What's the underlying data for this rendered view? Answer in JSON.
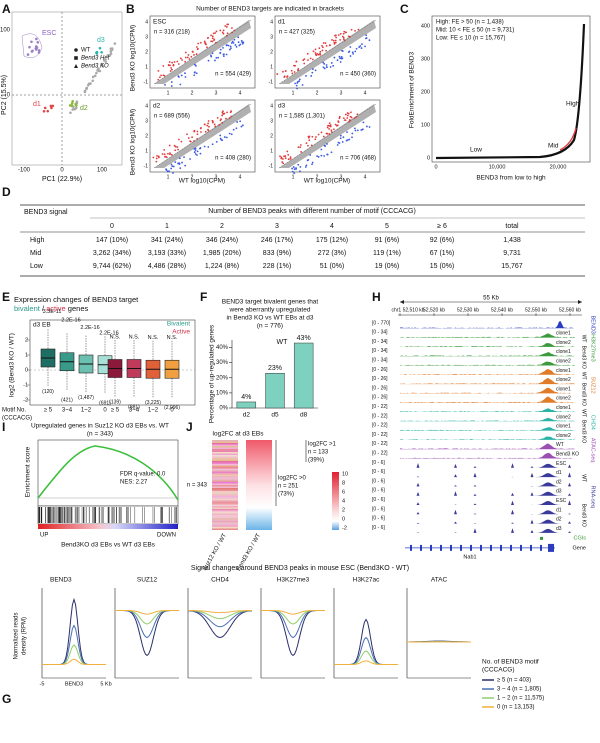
{
  "A": {
    "label": "A",
    "groups": [
      "ESC",
      "d1",
      "d2",
      "d3"
    ],
    "legend": [
      "WT",
      "Bend3 Het",
      "Bend3 KO"
    ],
    "x_label": "PC1 (22.9%)",
    "y_label": "PC2 (15.5%)",
    "x_ticks": [
      "-100",
      "0",
      "100"
    ],
    "y_ticks": [
      "100",
      "0"
    ]
  },
  "B": {
    "label": "B",
    "title": "Number of BEND3 targets are indicated in brackets",
    "plots": [
      {
        "name": "ESC",
        "up": "n = 316 (218)",
        "down": "n = 554 (429)"
      },
      {
        "name": "d1",
        "up": "n = 427 (325)",
        "down": "n = 450 (360)"
      },
      {
        "name": "d2",
        "up": "n = 689 (556)",
        "down": "n = 408 (280)"
      },
      {
        "name": "d3",
        "up": "n = 1,585 (1,301)",
        "down": "n = 706 (468)"
      }
    ],
    "y_label": "Bend3 KO log10(CPM)",
    "x_label": "WT log10(CPM)",
    "ticks": [
      "-1",
      "1",
      "2",
      "3",
      "4"
    ]
  },
  "C": {
    "label": "C",
    "legend": [
      "High: FE > 50 (n = 1,438)",
      "Mid: 10 < FE ≤ 50 (n = 9,731)",
      "Low: FE ≤ 10 (n = 15,767)"
    ],
    "y_label": "FoldEnrichment of BEND3",
    "x_label": "BEND3 from low to high",
    "x_ticks": [
      "0",
      "10,000",
      "20,000"
    ],
    "y_ticks": [
      "0",
      "100",
      "200",
      "300",
      "400"
    ],
    "classes": [
      "Low",
      "Mid",
      "High"
    ]
  },
  "D": {
    "label": "D",
    "row_header": "BEND3 signal",
    "col_title": "Number of BEND3 peaks with different number of motif (CCCACG)",
    "columns": [
      "0",
      "1",
      "2",
      "3",
      "4",
      "5",
      "≥ 6",
      "total"
    ],
    "rows": [
      {
        "name": "High",
        "cells": [
          "147 (10%)",
          "341 (24%)",
          "346 (24%)",
          "246 (17%)",
          "175 (12%)",
          "91 (6%)",
          "92 (6%)",
          "1,438"
        ]
      },
      {
        "name": "Mid",
        "cells": [
          "3,262 (34%)",
          "3,193 (33%)",
          "1,985 (20%)",
          "833 (9%)",
          "272 (3%)",
          "119 (1%)",
          "67 (1%)",
          "9,731"
        ]
      },
      {
        "name": "Low",
        "cells": [
          "9,744 (62%)",
          "4,486 (28%)",
          "1,224 (8%)",
          "228 (1%)",
          "51 (0%)",
          "19 (0%)",
          "15 (0%)",
          "15,767"
        ]
      }
    ]
  },
  "E": {
    "label": "E",
    "title": "Expression changes of BEND3 target",
    "bivalent": "bivalent",
    "slash": " / ",
    "active": "active",
    "genes": " genes",
    "stage": "d3 EB",
    "legend": [
      "Bivalent",
      "Active"
    ],
    "y_label": "log2 (Bend3 KO / WT)",
    "y_ticks": [
      "2",
      "1",
      "0",
      "-1",
      "-2"
    ],
    "pvalues": [
      "3.3E-11",
      "2.2E-16",
      "2.2E-16",
      "2.2E-16",
      "N.S.",
      "N.S.",
      "N.S.",
      "N.S."
    ],
    "counts": [
      "(120)",
      "(421)",
      "(1,487)",
      "(691)",
      "(139)",
      "(881)",
      "(3,225)",
      "(2,096)"
    ],
    "motif_label": [
      "Motif No.",
      "(CCCACG)"
    ],
    "categories": [
      "≥ 5",
      "3~4",
      "1~2",
      "0"
    ]
  },
  "chart_data": {
    "type": "bar",
    "label": "F",
    "title": [
      "BEND3 target bivalent genes that",
      "were aberrantly upregulated",
      "in Bend3 KO vs WT EBs at d3",
      "(n = 776)"
    ],
    "annotation": "WT",
    "y_label": "Percentage of up-regulated genes",
    "categories": [
      "d2",
      "d5",
      "d8"
    ],
    "values": [
      4,
      23,
      43
    ],
    "value_labels": [
      "4%",
      "23%",
      "43%"
    ],
    "color": "#7fd1bf",
    "ylim": [
      0,
      45
    ],
    "yticks": [
      {
        "value": 0,
        "label": "0%"
      },
      {
        "value": 10,
        "label": "10%"
      },
      {
        "value": 20,
        "label": "20%"
      },
      {
        "value": 30,
        "label": "30%"
      },
      {
        "value": 40,
        "label": "40%"
      }
    ]
  },
  "H": {
    "label": "H",
    "scale": "55 Kb",
    "coords": [
      "chr1 52,510 kb",
      "52,520 kb",
      "52,530 kb",
      "52,540 kb",
      "52,550 kb",
      "52,560 kb"
    ],
    "tracks": [
      {
        "range": "[0 - 770]"
      },
      {
        "range": "[0 - 34]",
        "sample": "clone1"
      },
      {
        "range": "[0 - 34]",
        "sample": "clone2"
      },
      {
        "range": "[0 - 34]",
        "sample": "clone1"
      },
      {
        "range": "[0 - 34]",
        "sample": "clone2"
      },
      {
        "range": "[0 - 26]",
        "sample": "clone1"
      },
      {
        "range": "[0 - 26]",
        "sample": "clone2"
      },
      {
        "range": "[0 - 26]",
        "sample": "clone1"
      },
      {
        "range": "[0 - 26]",
        "sample": "clone2"
      },
      {
        "range": "[0 - 22]",
        "sample": "clone1"
      },
      {
        "range": "[0 - 22]",
        "sample": "clone2"
      },
      {
        "range": "[0 - 22]",
        "sample": "clone1"
      },
      {
        "range": "[0 - 22]",
        "sample": "clone2"
      },
      {
        "range": "[0 - 22]",
        "sample": "WT"
      },
      {
        "range": "[0 - 22]",
        "sample": "Bend3 KO"
      },
      {
        "range": "[0 - 6]",
        "sample": "ESC"
      },
      {
        "range": "[0 - 6]",
        "sample": "d1"
      },
      {
        "range": "[0 - 6]",
        "sample": "d2"
      },
      {
        "range": "[0 - 6]",
        "sample": "d3"
      },
      {
        "range": "[0 - 6]",
        "sample": "ESC"
      },
      {
        "range": "[0 - 6]",
        "sample": "d1"
      },
      {
        "range": "[0 - 6]",
        "sample": "d2"
      },
      {
        "range": "[0 - 6]",
        "sample": "d3"
      }
    ],
    "factors": [
      "BEND3",
      "H3K27me3",
      "SUZ12",
      "CHD4",
      "ATAC-seq",
      "RNA-seq"
    ],
    "genotypes": [
      "WT",
      "Bend3 KO",
      "WT",
      "Bend3 KO",
      "WT",
      "Bend3 KO",
      "WT",
      "Bend3 KO"
    ],
    "cgi": "CGIs",
    "gene": "Gene",
    "gene_name": "Nab1"
  },
  "I": {
    "label": "I",
    "title": "Upregulated genes in Suz12 KO d3 EBs vs. WT",
    "n": "(n = 343)",
    "stats": [
      "FDR q-value: 0.0",
      "NES: 2.27"
    ],
    "y_label": "Enrichment score",
    "ends": [
      "UP",
      "DOWN"
    ],
    "x_label": "Bend3KO d3 EBs vs WT d3 EBs"
  },
  "J": {
    "label": "J",
    "title": "log2FC at d3 EBs",
    "n": "n = 343",
    "gt0": [
      "log2FC >0",
      "n = 251",
      "(73%)"
    ],
    "gt1": [
      "log2FC >1",
      "n = 133",
      "(39%)"
    ],
    "scale_ticks": [
      "10",
      "8",
      "6",
      "4",
      "2",
      "0",
      "-2"
    ],
    "columns": [
      "Suz12 KO / WT",
      "Bend3 KO / WT"
    ]
  },
  "G": {
    "label": "G",
    "title": "Signal changes around BEND3 peaks in mouse ESC (Bend3KO - WT)",
    "plots": [
      "BEND3",
      "SUZ12",
      "CHD4",
      "H3K27me3",
      "H3K27ac",
      "ATAC"
    ],
    "y_label": [
      "Normalized reads",
      "density (RPM)"
    ],
    "x_ticks": [
      "-5",
      "BEND3",
      "5 Kb"
    ],
    "legend_title": [
      "No. of BEND3 motif",
      "(CCCACG)"
    ],
    "legend": [
      "≥ 5 (n = 403)",
      "3 ~ 4 (n = 1,805)",
      "1 ~ 2 (n = 11,575)",
      "0 (n = 13,153)"
    ]
  }
}
